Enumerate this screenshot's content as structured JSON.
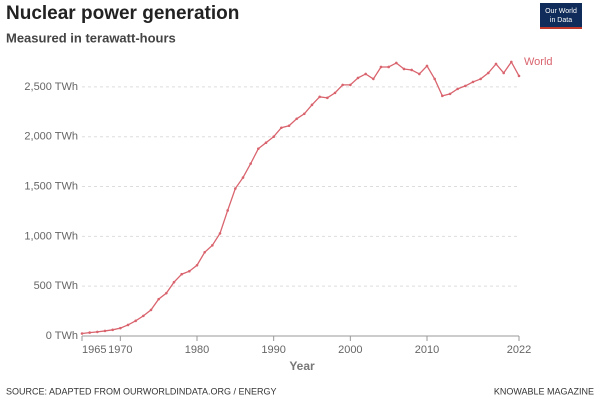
{
  "chart_data": {
    "type": "line",
    "title": "Nuclear power generation",
    "subtitle": "Measured in terawatt-hours",
    "x_label": "Year",
    "source": "SOURCE: ADAPTED FROM OURWORLDINDATA.ORG / ENERGY",
    "credit": "KNOWABLE MAGAZINE",
    "logo": [
      "Our World",
      "in Data"
    ],
    "x": [
      1965,
      1966,
      1967,
      1968,
      1969,
      1970,
      1971,
      1972,
      1973,
      1974,
      1975,
      1976,
      1977,
      1978,
      1979,
      1980,
      1981,
      1982,
      1983,
      1984,
      1985,
      1986,
      1987,
      1988,
      1989,
      1990,
      1991,
      1992,
      1993,
      1994,
      1995,
      1996,
      1997,
      1998,
      1999,
      2000,
      2001,
      2002,
      2003,
      2004,
      2005,
      2006,
      2007,
      2008,
      2009,
      2010,
      2011,
      2012,
      2013,
      2014,
      2015,
      2016,
      2017,
      2018,
      2019,
      2020,
      2021,
      2022
    ],
    "series": [
      {
        "name": "World",
        "color": "#d9646e",
        "values": [
          25,
          34,
          41,
          51,
          62,
          79,
          111,
          152,
          202,
          262,
          370,
          430,
          540,
          620,
          650,
          710,
          840,
          910,
          1030,
          1260,
          1480,
          1590,
          1730,
          1880,
          1940,
          2000,
          2090,
          2110,
          2180,
          2230,
          2320,
          2400,
          2390,
          2440,
          2520,
          2520,
          2590,
          2630,
          2580,
          2700,
          2700,
          2740,
          2680,
          2670,
          2630,
          2710,
          2580,
          2410,
          2430,
          2480,
          2510,
          2550,
          2580,
          2640,
          2730,
          2640,
          2750,
          2610
        ]
      }
    ],
    "xlim": [
      1965,
      2022
    ],
    "xticks": [
      1965,
      1970,
      1980,
      1990,
      2000,
      2010,
      2022
    ],
    "ylim": [
      0,
      2800
    ],
    "yticks": [
      {
        "value": 0,
        "label": "0 TWh"
      },
      {
        "value": 500,
        "label": "500 TWh"
      },
      {
        "value": 1000,
        "label": "1,000 TWh"
      },
      {
        "value": 1500,
        "label": "1,500 TWh"
      },
      {
        "value": 2000,
        "label": "2,000 TWh"
      },
      {
        "value": 2500,
        "label": "2,500 TWh"
      }
    ],
    "grid": true
  }
}
